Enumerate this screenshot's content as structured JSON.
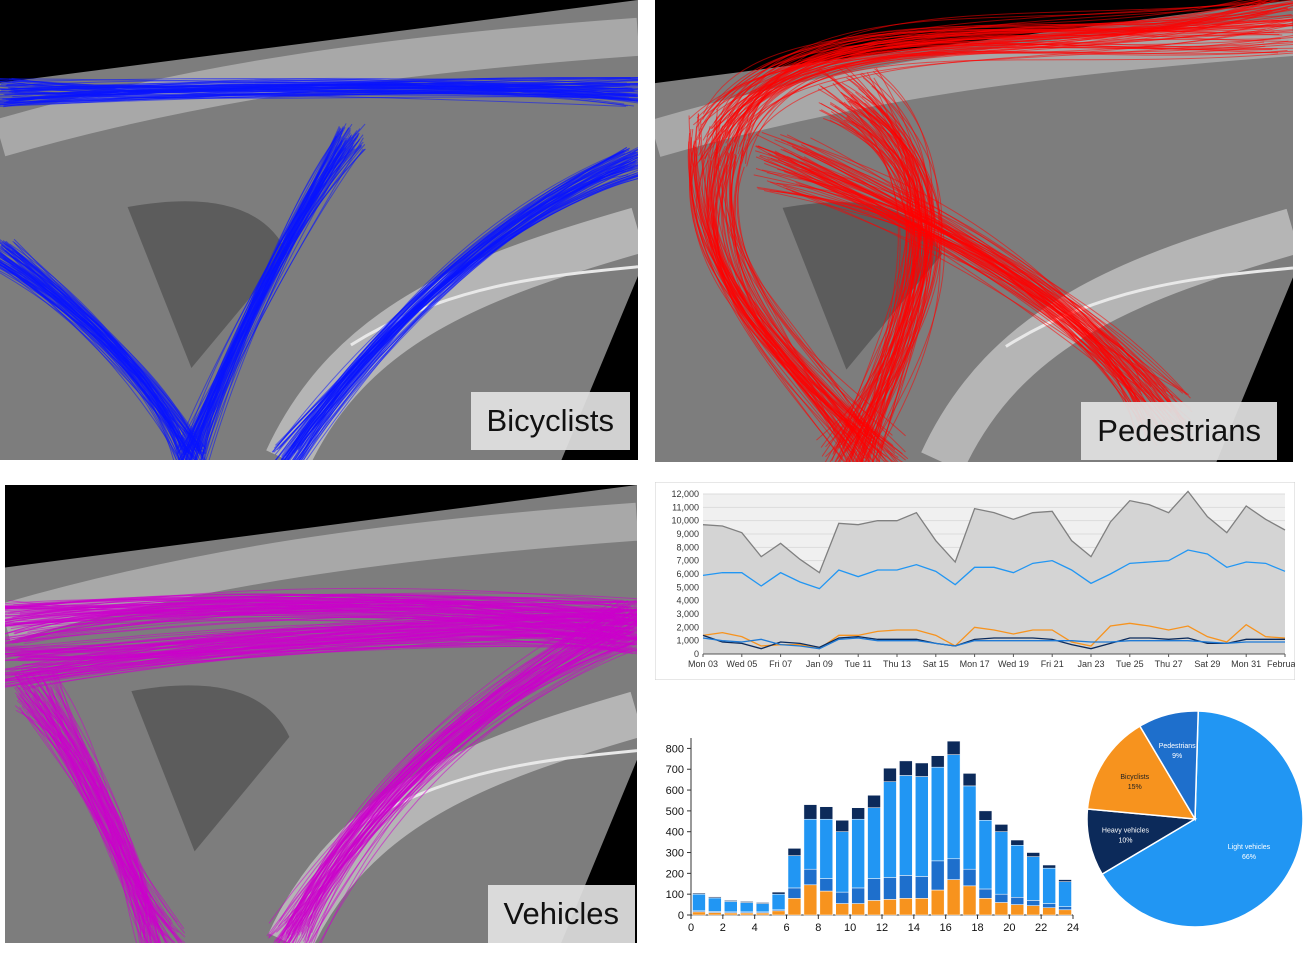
{
  "panels": [
    {
      "caption": "Bicyclists",
      "color": "#0a14ff"
    },
    {
      "caption": "Pedestrians",
      "color": "#ff0000"
    },
    {
      "caption": "Vehicles",
      "color": "#cc00cc"
    }
  ],
  "chart_data": [
    {
      "type": "area",
      "title": "",
      "xlabel": "",
      "ylabel": "",
      "ylim": [
        0,
        12000
      ],
      "yticks": [
        0,
        1000,
        2000,
        3000,
        4000,
        5000,
        6000,
        7000,
        8000,
        9000,
        10000,
        11000,
        12000
      ],
      "ytick_labels": [
        "0",
        "1,000",
        "2,000",
        "3,000",
        "4,000",
        "5,000",
        "6,000",
        "7,000",
        "8,000",
        "9,000",
        "10,000",
        "11,000",
        "12,000"
      ],
      "x": [
        "Jan 03",
        "Jan 04",
        "Jan 05",
        "Jan 06",
        "Jan 07",
        "Jan 08",
        "Jan 09",
        "Jan 10",
        "Jan 11",
        "Jan 12",
        "Jan 13",
        "Jan 14",
        "Jan 15",
        "Jan 16",
        "Jan 17",
        "Jan 18",
        "Jan 19",
        "Jan 20",
        "Jan 21",
        "Jan 22",
        "Jan 23",
        "Jan 24",
        "Jan 25",
        "Jan 26",
        "Jan 27",
        "Jan 28",
        "Jan 29",
        "Jan 30",
        "Jan 31",
        "Feb 01",
        "Feb 02"
      ],
      "xtick_labels": [
        "Mon 03",
        "Wed 05",
        "Fri 07",
        "Jan 09",
        "Tue 11",
        "Thu 13",
        "Sat 15",
        "Mon 17",
        "Wed 19",
        "Fri 21",
        "Jan 23",
        "Tue 25",
        "Thu 27",
        "Sat 29",
        "Mon 31",
        "February"
      ],
      "grid": true,
      "legend": "none",
      "series": [
        {
          "color": "#808080",
          "fill": "#d4d4d4",
          "values": [
            9700,
            9600,
            9100,
            7300,
            8300,
            7100,
            6100,
            9800,
            9700,
            10000,
            10000,
            10600,
            8500,
            6900,
            10900,
            10600,
            10100,
            10600,
            10700,
            8500,
            7300,
            9900,
            11500,
            11200,
            10600,
            12200,
            10300,
            9100,
            11100,
            10100,
            9300
          ]
        },
        {
          "color": "#2196f3",
          "values": [
            5900,
            6100,
            6100,
            5100,
            6100,
            5400,
            4900,
            6300,
            5800,
            6300,
            6300,
            6700,
            6200,
            5200,
            6500,
            6500,
            6100,
            6800,
            7000,
            6300,
            5300,
            6000,
            6800,
            6900,
            7000,
            7800,
            7500,
            6500,
            6900,
            6800,
            6200
          ]
        },
        {
          "color": "#f7931e",
          "values": [
            1400,
            1600,
            1300,
            600,
            700,
            700,
            400,
            1400,
            1400,
            1700,
            1800,
            1800,
            1400,
            600,
            2000,
            1800,
            1500,
            1800,
            1800,
            900,
            600,
            2100,
            2300,
            2100,
            1800,
            2100,
            1300,
            900,
            2200,
            1300,
            1200
          ]
        },
        {
          "color": "#0a2a5c",
          "values": [
            1400,
            900,
            800,
            400,
            900,
            800,
            500,
            1200,
            1300,
            1100,
            1100,
            1100,
            800,
            600,
            1100,
            1200,
            1200,
            1200,
            1100,
            700,
            400,
            800,
            1200,
            1200,
            1100,
            1200,
            800,
            800,
            1100,
            1100,
            1100
          ]
        },
        {
          "color": "#1e7ad6",
          "values": [
            1200,
            1000,
            900,
            1100,
            700,
            600,
            400,
            1100,
            1200,
            1000,
            1000,
            1000,
            800,
            600,
            1000,
            1000,
            1000,
            1000,
            1000,
            1000,
            900,
            900,
            1000,
            1000,
            1000,
            1000,
            900,
            800,
            900,
            900,
            900
          ]
        }
      ]
    },
    {
      "type": "bar",
      "title": "",
      "xlabel": "",
      "ylabel": "",
      "ylim": [
        0,
        850
      ],
      "yticks": [
        0,
        100,
        200,
        300,
        400,
        500,
        600,
        700,
        800
      ],
      "xticks": [
        0,
        2,
        4,
        6,
        8,
        10,
        12,
        14,
        16,
        18,
        20,
        22,
        24
      ],
      "categories": [
        0,
        1,
        2,
        3,
        4,
        5,
        6,
        7,
        8,
        9,
        10,
        11,
        12,
        13,
        14,
        15,
        16,
        17,
        18,
        19,
        20,
        21,
        22,
        23
      ],
      "stacked": true,
      "legend": "none",
      "series": [
        {
          "color": "#f7931e",
          "values": [
            15,
            12,
            10,
            10,
            10,
            20,
            80,
            145,
            115,
            55,
            55,
            70,
            75,
            80,
            80,
            120,
            170,
            140,
            80,
            60,
            50,
            45,
            35,
            25
          ]
        },
        {
          "color": "#1e6fcc",
          "values": [
            5,
            5,
            5,
            5,
            5,
            5,
            50,
            75,
            60,
            55,
            75,
            105,
            105,
            110,
            105,
            140,
            100,
            80,
            45,
            40,
            35,
            25,
            20,
            15
          ]
        },
        {
          "color": "#2196f3",
          "values": [
            80,
            65,
            50,
            45,
            40,
            75,
            155,
            240,
            285,
            290,
            330,
            340,
            460,
            480,
            480,
            450,
            500,
            400,
            330,
            300,
            250,
            210,
            170,
            120
          ]
        },
        {
          "color": "#0c2a5a",
          "values": [
            5,
            5,
            5,
            5,
            5,
            10,
            35,
            70,
            60,
            55,
            55,
            60,
            65,
            70,
            65,
            55,
            65,
            60,
            45,
            35,
            25,
            20,
            15,
            10
          ]
        }
      ]
    },
    {
      "type": "pie",
      "title": "",
      "legend": "none",
      "slices": [
        {
          "label": "Light vehicles",
          "pct_label": "66%",
          "value": 66,
          "color": "#2196f3"
        },
        {
          "label": "Heavy vehicles",
          "pct_label": "10%",
          "value": 10,
          "color": "#0c2a5a"
        },
        {
          "label": "Bicyclists",
          "pct_label": "15%",
          "value": 15,
          "color": "#f7931e"
        },
        {
          "label": "Pedestrians",
          "pct_label": "9%",
          "value": 9,
          "color": "#1e6fcc"
        }
      ]
    }
  ]
}
